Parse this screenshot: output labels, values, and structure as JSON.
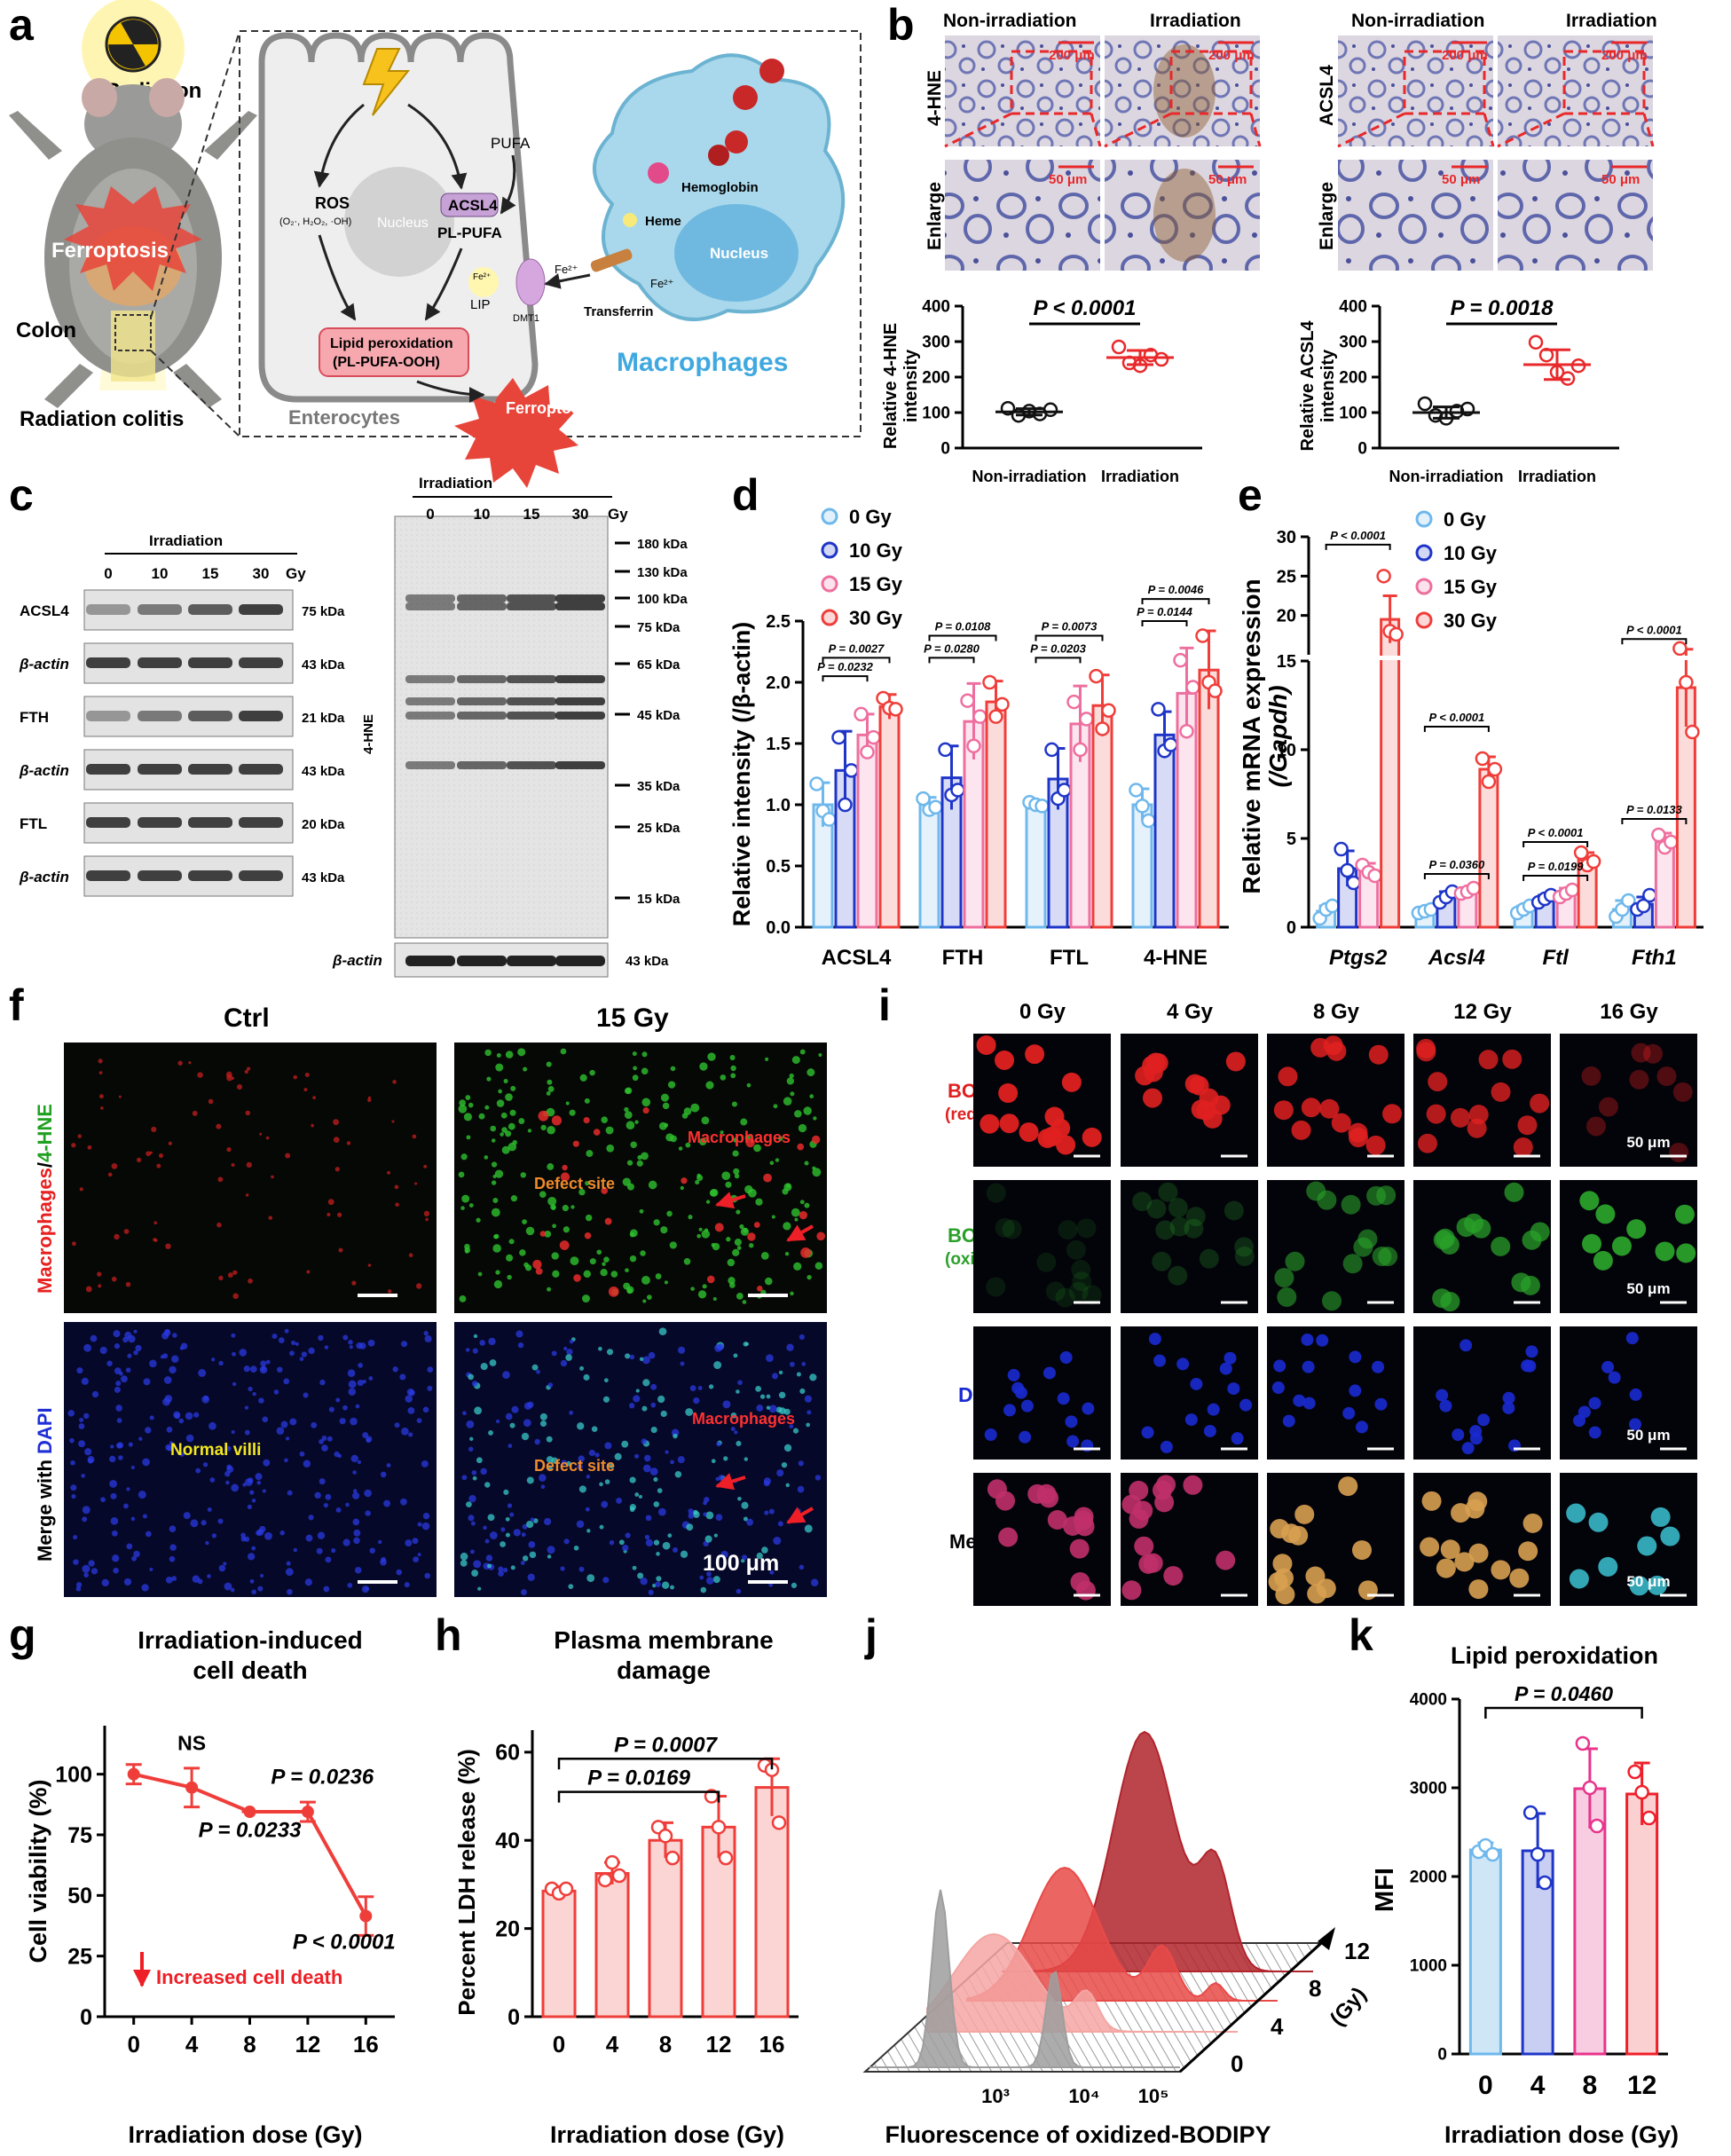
{
  "panel_letters": [
    "a",
    "b",
    "c",
    "d",
    "e",
    "f",
    "g",
    "h",
    "i",
    "j",
    "k"
  ],
  "panel_a": {
    "radiation_label": "Radiation",
    "ferroptosis_label": "Ferroptosis",
    "colon_label": "Colon",
    "caption": "Radiation colitis",
    "nucleus_enterocyte": "Nucleus",
    "ros_label": "ROS",
    "ros_species": "(O₂·, H₂O₂, ·OH)",
    "pufa_label": "PUFA",
    "acsl4_label": "ACSL4",
    "pl_pufa_label": "PL-PUFA",
    "fe_lip_label": "Fe²⁺",
    "lip_label": "LIP",
    "dmt1_label": "DMT1",
    "lipid_perox_label": "Lipid peroxidation",
    "pl_pufa_ooh_label": "(PL-PUFA-OOH)",
    "ferroptosis_center_label": "Ferroptosis",
    "enterocytes_label": "Enterocytes",
    "hemoglobin_label": "Hemoglobin",
    "heme_label": "Heme",
    "nucleus_macrophage": "Nucleus",
    "fe2_label_a": "Fe²⁺",
    "fe2_label_b": "Fe²⁺",
    "transferrin_label": "Transferrin",
    "macrophages_label": "Macrophages"
  },
  "panel_b": {
    "col_non": "Non-irradiation",
    "col_irr": "Irradiation",
    "left_row1": "4-HNE",
    "right_row1": "ACSL4",
    "row2": "Enlarge",
    "scale_200": "200 μm",
    "scale_50": "50 μm",
    "colors": {
      "non": "#111111",
      "irr": "#e8282a",
      "tissue": "#d9d2dd",
      "nuclei": "#6a72b4",
      "stain": "#8a5a2b"
    }
  },
  "panel_c": {
    "group_label": "Irradiation",
    "doses": [
      "0",
      "10",
      "15",
      "30"
    ],
    "unit": "Gy",
    "left_rows": [
      {
        "label": "ACSL4",
        "kda": "75 kDa"
      },
      {
        "label": "β-actin",
        "kda": "43 kDa"
      },
      {
        "label": "FTH",
        "kda": "21 kDa"
      },
      {
        "label": "β-actin",
        "kda": "43 kDa"
      },
      {
        "label": "FTL",
        "kda": "20 kDa"
      },
      {
        "label": "β-actin",
        "kda": "43 kDa"
      }
    ],
    "hne_label": "4-HNE",
    "markers": [
      "180 kDa",
      "130 kDa",
      "100 kDa",
      "75 kDa",
      "65 kDa",
      "45 kDa",
      "35 kDa",
      "25 kDa",
      "15 kDa"
    ],
    "actin_label": "β-actin",
    "actin_kda": "43 kDa"
  },
  "panel_f": {
    "col_ctrl": "Ctrl",
    "col_15": "15 Gy",
    "ylabel_macro": "Macrophages",
    "ylabel_slash": "/",
    "ylabel_hne": "4-HNE",
    "ylabel_merge": "Merge with ",
    "ylabel_dapi": "DAPI",
    "defect_site": "Defect site",
    "macrophages": "Macrophages",
    "normal_villi": "Normal villi",
    "scale": "100 μm"
  },
  "panel_i": {
    "doses": [
      "0 Gy",
      "4 Gy",
      "8 Gy",
      "12 Gy",
      "16 Gy"
    ],
    "row1": "BODIPY",
    "row1_sub": "(reduced)",
    "row2": "BODIPY",
    "row2_sub": "(oxidized)",
    "row3": "DAPI",
    "row4": "Merge",
    "scale": "50 μm",
    "colors": {
      "red": "#e02020",
      "green": "#2aa02a",
      "blue": "#1a2ad0"
    }
  },
  "chart_data": [
    {
      "panel": "b-left",
      "type": "scatter",
      "categories": [
        "Non-irradiation",
        "Irradiation"
      ],
      "ylabel": "Relative 4-HNE intensity",
      "ylim": [
        0,
        400
      ],
      "yticks": [
        0,
        100,
        200,
        300,
        400
      ],
      "significance": "P < 0.0001",
      "series": [
        {
          "name": "Non-irradiation",
          "color": "#111111",
          "points": [
            112,
            92,
            104,
            96,
            108
          ],
          "mean": 102,
          "sd": 9
        },
        {
          "name": "Irradiation",
          "color": "#e8282a",
          "points": [
            285,
            240,
            232,
            262,
            250
          ],
          "mean": 255,
          "sd": 20
        }
      ]
    },
    {
      "panel": "b-right",
      "type": "scatter",
      "categories": [
        "Non-irradiation",
        "Irradiation"
      ],
      "ylabel": "Relative ACSL4 intensity",
      "ylim": [
        0,
        400
      ],
      "yticks": [
        0,
        100,
        200,
        300,
        400
      ],
      "significance": "P = 0.0018",
      "series": [
        {
          "name": "Non-irradiation",
          "color": "#111111",
          "points": [
            125,
            92,
            84,
            104,
            110
          ],
          "mean": 100,
          "sd": 16
        },
        {
          "name": "Irradiation",
          "color": "#e8282a",
          "points": [
            298,
            262,
            214,
            196,
            232
          ],
          "mean": 235,
          "sd": 42
        }
      ]
    },
    {
      "panel": "d",
      "type": "bar",
      "categories": [
        "ACSL4",
        "FTH",
        "FTL",
        "4-HNE"
      ],
      "ylabel": "Relative intensity (/β-actin)",
      "ylim": [
        0,
        2.5
      ],
      "yticks": [
        0.0,
        0.5,
        1.0,
        1.5,
        2.0,
        2.5
      ],
      "series": [
        {
          "name": "0 Gy",
          "color": "#6fb8ec",
          "values": [
            1.0,
            1.0,
            1.0,
            1.0
          ],
          "sd": [
            0.18,
            0.06,
            0.03,
            0.13
          ],
          "points": [
            [
              1.17,
              0.95,
              0.88
            ],
            [
              1.05,
              0.96,
              0.98
            ],
            [
              1.02,
              1.0,
              0.99
            ],
            [
              1.12,
              0.99,
              0.87
            ]
          ]
        },
        {
          "name": "10 Gy",
          "color": "#1f35c8",
          "values": [
            1.28,
            1.22,
            1.21,
            1.57
          ],
          "sd": [
            0.32,
            0.26,
            0.25,
            0.19
          ],
          "points": [
            [
              1.55,
              1.0,
              1.28
            ],
            [
              1.45,
              1.08,
              1.12
            ],
            [
              1.45,
              1.05,
              1.12
            ],
            [
              1.78,
              1.44,
              1.49
            ]
          ]
        },
        {
          "name": "15 Gy",
          "color": "#ee6f9f",
          "values": [
            1.57,
            1.68,
            1.66,
            1.91
          ],
          "sd": [
            0.17,
            0.31,
            0.31,
            0.37
          ],
          "points": [
            [
              1.74,
              1.43,
              1.55
            ],
            [
              1.85,
              1.48,
              1.72
            ],
            [
              1.84,
              1.45,
              1.7
            ],
            [
              2.18,
              1.6,
              1.96
            ]
          ]
        },
        {
          "name": "30 Gy",
          "color": "#ef3e3a",
          "values": [
            1.8,
            1.84,
            1.81,
            2.1
          ],
          "sd": [
            0.1,
            0.17,
            0.25,
            0.32
          ],
          "points": [
            [
              1.87,
              1.79,
              1.78
            ],
            [
              2.0,
              1.72,
              1.82
            ],
            [
              2.05,
              1.62,
              1.77
            ],
            [
              2.38,
              2.0,
              1.93
            ]
          ]
        }
      ],
      "annotations": [
        {
          "text": "P = 0.0232",
          "group": 0,
          "from": 0,
          "to": 2,
          "y": 2.05
        },
        {
          "text": "P = 0.0027",
          "group": 0,
          "from": 0,
          "to": 3,
          "y": 2.2
        },
        {
          "text": "P = 0.0280",
          "group": 1,
          "from": 0,
          "to": 2,
          "y": 2.2
        },
        {
          "text": "P = 0.0108",
          "group": 1,
          "from": 0,
          "to": 3,
          "y": 2.38
        },
        {
          "text": "P = 0.0203",
          "group": 2,
          "from": 0,
          "to": 2,
          "y": 2.2
        },
        {
          "text": "P = 0.0073",
          "group": 2,
          "from": 0,
          "to": 3,
          "y": 2.38
        },
        {
          "text": "P = 0.0144",
          "group": 3,
          "from": 0,
          "to": 2,
          "y": 2.5
        },
        {
          "text": "P = 0.0046",
          "group": 3,
          "from": 0,
          "to": 3,
          "y": 2.68
        }
      ]
    },
    {
      "panel": "e",
      "type": "bar",
      "categories": [
        "Ptgs2",
        "Acsl4",
        "Ftl",
        "Fth1"
      ],
      "ylabel_line1": "Relative mRNA expression",
      "ylabel_line2": "(/Gapdh)",
      "ylim_lower": [
        0,
        15
      ],
      "ylim_upper": [
        15,
        30
      ],
      "yticks": [
        0,
        5,
        10,
        15,
        20,
        25,
        30
      ],
      "series": [
        {
          "name": "0 Gy",
          "color": "#6fb8ec",
          "values": [
            0.9,
            0.9,
            1.0,
            1.0
          ],
          "sd": [
            0.3,
            0.2,
            0.2,
            0.5
          ],
          "points": [
            [
              0.5,
              1.0,
              1.2
            ],
            [
              0.8,
              0.9,
              1.0
            ],
            [
              0.8,
              1.0,
              1.2
            ],
            [
              0.6,
              1.0,
              1.5
            ]
          ]
        },
        {
          "name": "10 Gy",
          "color": "#1f35c8",
          "values": [
            3.3,
            1.7,
            1.6,
            1.3
          ],
          "sd": [
            1.0,
            0.3,
            0.2,
            0.4
          ],
          "points": [
            [
              4.4,
              3.2,
              2.5
            ],
            [
              1.4,
              1.7,
              2.0
            ],
            [
              1.4,
              1.6,
              1.8
            ],
            [
              1.0,
              1.2,
              1.8
            ]
          ]
        },
        {
          "name": "15 Gy",
          "color": "#ee6f9f",
          "values": [
            3.2,
            2.0,
            1.9,
            4.8
          ],
          "sd": [
            0.4,
            0.2,
            0.3,
            0.5
          ],
          "points": [
            [
              3.5,
              3.1,
              2.9
            ],
            [
              1.9,
              2.0,
              2.2
            ],
            [
              1.7,
              1.9,
              2.1
            ],
            [
              5.2,
              4.5,
              4.8
            ]
          ]
        },
        {
          "name": "30 Gy",
          "color": "#ef3e3a",
          "values": [
            19.5,
            8.9,
            3.8,
            13.5
          ],
          "sd": [
            3.0,
            0.7,
            0.4,
            2.2
          ],
          "points": [
            [
              25.0,
              18.0,
              17.6
            ],
            [
              9.5,
              8.2,
              8.9
            ],
            [
              4.2,
              3.5,
              3.7
            ],
            [
              15.8,
              13.8,
              11.0
            ]
          ]
        }
      ],
      "annotations": [
        {
          "text": "P < 0.0001",
          "group": 0,
          "y": 29.0
        },
        {
          "text": "P = 0.0360",
          "group": 1,
          "y": 3.0
        },
        {
          "text": "P < 0.0001",
          "group": 1,
          "y": 11.3
        },
        {
          "text": "P = 0.0199",
          "group": 2,
          "y": 2.9
        },
        {
          "text": "P < 0.0001",
          "group": 2,
          "y": 4.8
        },
        {
          "text": "P = 0.0133",
          "group": 3,
          "y": 6.1
        },
        {
          "text": "P < 0.0001",
          "group": 3,
          "y": 17.0
        }
      ]
    },
    {
      "panel": "g",
      "type": "line",
      "title": "Irradiation-induced cell death",
      "xlabel": "Irradiation dose (Gy)",
      "ylabel": "Cell viability (%)",
      "x": [
        0,
        4,
        8,
        12,
        16
      ],
      "values": [
        100,
        94.5,
        84.5,
        84.5,
        41.5
      ],
      "sd": [
        4,
        8,
        0,
        4,
        8
      ],
      "xlim": [
        -2,
        18
      ],
      "ylim": [
        0,
        120
      ],
      "yticks": [
        0,
        25,
        50,
        75,
        100
      ],
      "color": "#ef3e3a",
      "labels": [
        {
          "text": "NS",
          "x": 4,
          "y": 110
        },
        {
          "text": "P = 0.0233",
          "x": 8,
          "y": 74
        },
        {
          "text": "P = 0.0236",
          "x": 13,
          "y": 96
        },
        {
          "text": "P < 0.0001",
          "x": 14.5,
          "y": 28
        }
      ],
      "note": "Increased cell death"
    },
    {
      "panel": "h",
      "type": "bar",
      "title": "Plasma membrane damage",
      "xlabel": "Irradiation dose (Gy)",
      "ylabel": "Percent LDH release (%)",
      "categories": [
        "0",
        "4",
        "8",
        "12",
        "16"
      ],
      "values": [
        28.5,
        32.5,
        40,
        43,
        52
      ],
      "sd": [
        1,
        2.5,
        4,
        7,
        6.5
      ],
      "points": [
        [
          29,
          28,
          29
        ],
        [
          31,
          35,
          32
        ],
        [
          43,
          41,
          36
        ],
        [
          50,
          43,
          36
        ],
        [
          57,
          56,
          44
        ]
      ],
      "ylim": [
        0,
        65
      ],
      "yticks": [
        0,
        20,
        40,
        60
      ],
      "color": "#ef3e3a",
      "fill": "#fbd5d3",
      "annotations": [
        {
          "text": "P = 0.0169",
          "from": 0,
          "to": 3,
          "y": 51
        },
        {
          "text": "P = 0.0007",
          "from": 0,
          "to": 4,
          "y": 58.5
        }
      ]
    },
    {
      "panel": "j",
      "type": "area",
      "xlabel": "Fluorescence of oxidized-BODIPY",
      "depth_label": "(Gy)",
      "doses": [
        "0",
        "4",
        "8",
        "12"
      ],
      "xticks": [
        "10³",
        "10⁴",
        "10⁵"
      ],
      "colors": [
        "#9e9e9e",
        "#f4a6a3",
        "#e84a48",
        "#b0252c"
      ]
    },
    {
      "panel": "k",
      "type": "bar",
      "title": "Lipid peroxidation",
      "xlabel": "Irradiation dose (Gy)",
      "ylabel": "MFI",
      "categories": [
        "0",
        "4",
        "8",
        "12"
      ],
      "values": [
        2300,
        2290,
        2990,
        2930
      ],
      "sd": [
        80,
        420,
        450,
        350
      ],
      "points": [
        [
          2280,
          2350,
          2250
        ],
        [
          2720,
          2250,
          1930
        ],
        [
          3500,
          3000,
          2570
        ],
        [
          3180,
          2950,
          2660
        ]
      ],
      "colors": [
        "#6fb8ec",
        "#1f35c8",
        "#e8348c",
        "#ef1f2a"
      ],
      "fills": [
        "#cfe6f7",
        "#c9cef3",
        "#f8cde2",
        "#fbd0d1"
      ],
      "ylim": [
        0,
        4000
      ],
      "yticks": [
        0,
        1000,
        2000,
        3000,
        4000
      ],
      "annotations": [
        {
          "text": "P = 0.0460",
          "from": 0,
          "to": 3,
          "y": 3900
        }
      ]
    }
  ]
}
